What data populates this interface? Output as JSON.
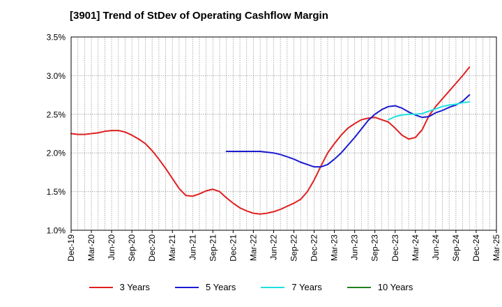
{
  "title": "[3901]  Trend of StDev of Operating Cashflow Margin",
  "chart_data": {
    "type": "line",
    "title": "[3901]  Trend of StDev of Operating Cashflow Margin",
    "xlabel": "",
    "ylabel": "",
    "ylim": [
      1.0,
      3.5
    ],
    "yticks": [
      1.0,
      1.5,
      2.0,
      2.5,
      3.0,
      3.5
    ],
    "ytick_labels": [
      "1.0%",
      "1.5%",
      "2.0%",
      "2.5%",
      "3.0%",
      "3.5%"
    ],
    "xticks": [
      "Dec-19",
      "Mar-20",
      "Jun-20",
      "Sep-20",
      "Dec-20",
      "Mar-21",
      "Jun-21",
      "Sep-21",
      "Dec-21",
      "Mar-22",
      "Jun-22",
      "Sep-22",
      "Dec-22",
      "Mar-23",
      "Jun-23",
      "Sep-23",
      "Dec-23",
      "Mar-24",
      "Jun-24",
      "Sep-24",
      "Dec-24",
      "Mar-25"
    ],
    "x_months": [
      "Dec-19",
      "Jan-20",
      "Feb-20",
      "Mar-20",
      "Apr-20",
      "May-20",
      "Jun-20",
      "Jul-20",
      "Aug-20",
      "Sep-20",
      "Oct-20",
      "Nov-20",
      "Dec-20",
      "Jan-21",
      "Feb-21",
      "Mar-21",
      "Apr-21",
      "May-21",
      "Jun-21",
      "Jul-21",
      "Aug-21",
      "Sep-21",
      "Oct-21",
      "Nov-21",
      "Dec-21",
      "Jan-22",
      "Feb-22",
      "Mar-22",
      "Apr-22",
      "May-22",
      "Jun-22",
      "Jul-22",
      "Aug-22",
      "Sep-22",
      "Oct-22",
      "Nov-22",
      "Dec-22",
      "Jan-23",
      "Feb-23",
      "Mar-23",
      "Apr-23",
      "May-23",
      "Jun-23",
      "Jul-23",
      "Aug-23",
      "Sep-23",
      "Oct-23",
      "Nov-23",
      "Dec-23",
      "Jan-24",
      "Feb-24",
      "Mar-24",
      "Apr-24",
      "May-24",
      "Jun-24",
      "Jul-24",
      "Aug-24",
      "Sep-24",
      "Oct-24",
      "Nov-24",
      "Dec-24",
      "Jan-25",
      "Feb-25",
      "Mar-25"
    ],
    "grid": true,
    "legend_position": "bottom",
    "series": [
      {
        "name": "3 Years",
        "color": "#e02020",
        "start": "Dec-19",
        "values": [
          2.25,
          2.24,
          2.24,
          2.25,
          2.26,
          2.28,
          2.29,
          2.29,
          2.27,
          2.23,
          2.18,
          2.12,
          2.03,
          1.92,
          1.8,
          1.67,
          1.54,
          1.45,
          1.44,
          1.47,
          1.51,
          1.53,
          1.5,
          1.42,
          1.35,
          1.29,
          1.25,
          1.22,
          1.21,
          1.22,
          1.24,
          1.27,
          1.31,
          1.35,
          1.4,
          1.5,
          1.65,
          1.83,
          2.0,
          2.12,
          2.23,
          2.32,
          2.38,
          2.43,
          2.45,
          2.46,
          2.43,
          2.4,
          2.32,
          2.23,
          2.18,
          2.2,
          2.3,
          2.48,
          2.6,
          2.7,
          2.8,
          2.9,
          3.0,
          3.11
        ]
      },
      {
        "name": "5 Years",
        "color": "#1a1ad0",
        "start": "Nov-21",
        "values": [
          2.02,
          2.02,
          2.02,
          2.02,
          2.02,
          2.02,
          2.01,
          2.0,
          1.98,
          1.95,
          1.92,
          1.88,
          1.85,
          1.82,
          1.82,
          1.85,
          1.92,
          2.0,
          2.1,
          2.2,
          2.31,
          2.42,
          2.5,
          2.56,
          2.6,
          2.61,
          2.58,
          2.53,
          2.49,
          2.46,
          2.47,
          2.52,
          2.55,
          2.59,
          2.62,
          2.67,
          2.75
        ]
      },
      {
        "name": "7 Years",
        "color": "#20e0e0",
        "start": "Nov-23",
        "values": [
          2.43,
          2.47,
          2.49,
          2.5,
          2.5,
          2.51,
          2.54,
          2.57,
          2.6,
          2.62,
          2.63,
          2.65,
          2.66
        ]
      },
      {
        "name": "10 Years",
        "color": "#208020",
        "start": "Dec-24",
        "values": []
      }
    ]
  }
}
